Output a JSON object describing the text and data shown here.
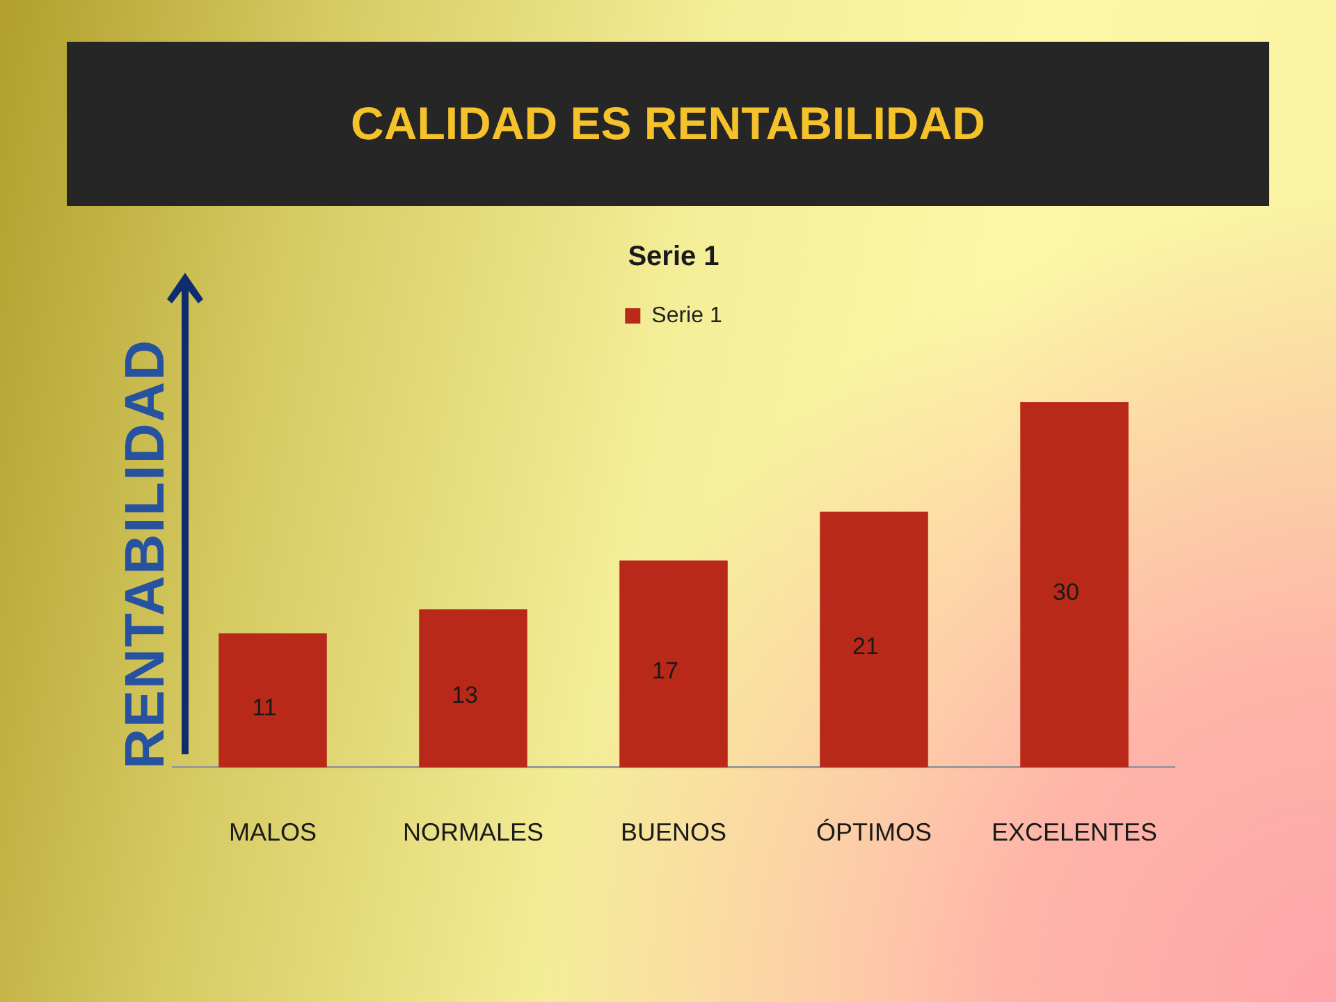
{
  "chart_data": {
    "type": "bar",
    "title": "CALIDAD ES RENTABILIDAD",
    "subtitle": "Serie 1",
    "ylabel": "RENTABILIDAD",
    "categories": [
      "MALOS",
      "NORMALES",
      "BUENOS",
      "ÓPTIMOS",
      "EXCELENTES"
    ],
    "series": [
      {
        "name": "Serie 1",
        "color": "#b8291a",
        "values": [
          11,
          13,
          17,
          21,
          30
        ]
      }
    ],
    "data_labels": true,
    "legend": "top",
    "grid": false
  }
}
